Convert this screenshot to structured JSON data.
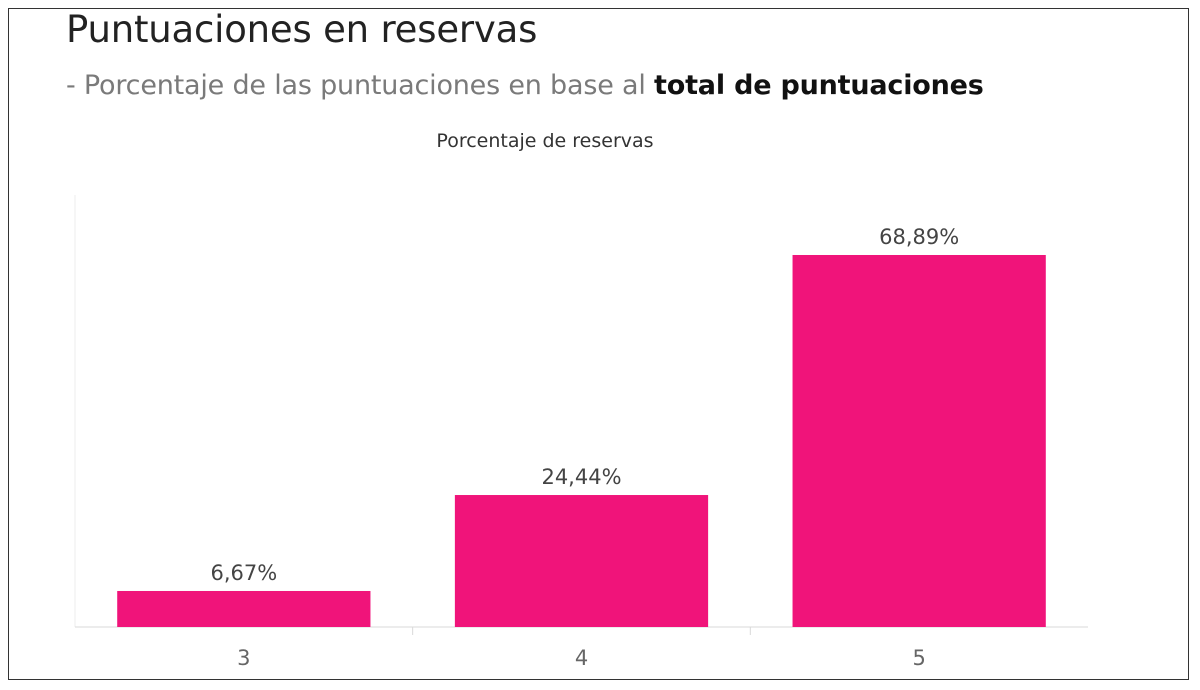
{
  "page": {
    "title": "Puntuaciones en reservas",
    "subtitle_prefix": "- Porcentaje de las puntuaciones en base al ",
    "subtitle_bold": "total de puntuaciones"
  },
  "colors": {
    "bar": "#f0147a",
    "axis": "#d9d9d9",
    "label": "#444444",
    "tick": "#666666"
  },
  "chart_data": {
    "type": "bar",
    "title": "Porcentaje de reservas",
    "categories": [
      "3",
      "4",
      "5"
    ],
    "values": [
      6.67,
      24.44,
      68.89
    ],
    "value_labels": [
      "6,67%",
      "24,44%",
      "68,89%"
    ],
    "unit": "%",
    "ylim": [
      0,
      80
    ],
    "grid": false,
    "legend": "none"
  }
}
